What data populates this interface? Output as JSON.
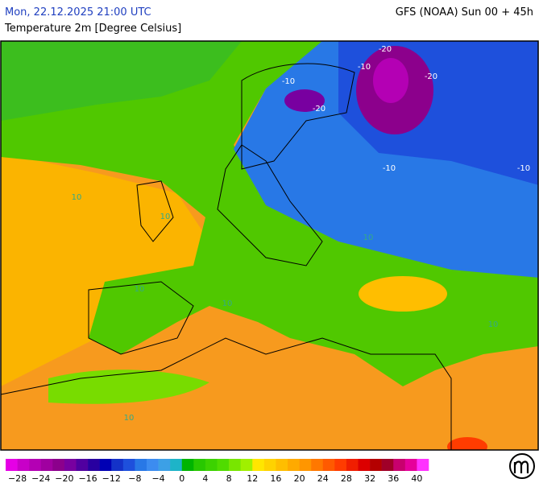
{
  "header": {
    "date": "Mon, 22.12.2025 21:00 UTC",
    "model": "GFS (NOAA) Sun 00 + 45h",
    "title": "Temperature 2m [Degree Celsius]"
  },
  "colorbar": {
    "min": -30,
    "max": 42,
    "colors": [
      "#e600e6",
      "#c800c8",
      "#b400b4",
      "#a000a0",
      "#8c008c",
      "#7800a0",
      "#5000a0",
      "#2800a0",
      "#0000b4",
      "#1432c8",
      "#1e50dc",
      "#2878e6",
      "#3c8cf0",
      "#3ca0e6",
      "#1eb4c8",
      "#00b400",
      "#28c800",
      "#3cd200",
      "#50dc00",
      "#78e600",
      "#a0f000",
      "#ffe600",
      "#ffd200",
      "#ffbe00",
      "#ffaa00",
      "#ff9600",
      "#ff7800",
      "#ff5a00",
      "#ff3c00",
      "#f01e00",
      "#dc0000",
      "#b40000",
      "#a00028",
      "#c8006e",
      "#e6009b",
      "#ff32ff"
    ],
    "ticks": [
      {
        "value": -28,
        "label": "−28"
      },
      {
        "value": -24,
        "label": "−24"
      },
      {
        "value": -20,
        "label": "−20"
      },
      {
        "value": -16,
        "label": "−16"
      },
      {
        "value": -12,
        "label": "−12"
      },
      {
        "value": -8,
        "label": "−8"
      },
      {
        "value": -4,
        "label": "−4"
      },
      0,
      4,
      8,
      12,
      16,
      20,
      24,
      28,
      32,
      36,
      40
    ]
  },
  "contour_labels": [
    -20,
    -20,
    -10,
    -10,
    -20,
    -10,
    -10,
    10,
    10,
    10,
    10,
    10,
    10,
    10
  ]
}
